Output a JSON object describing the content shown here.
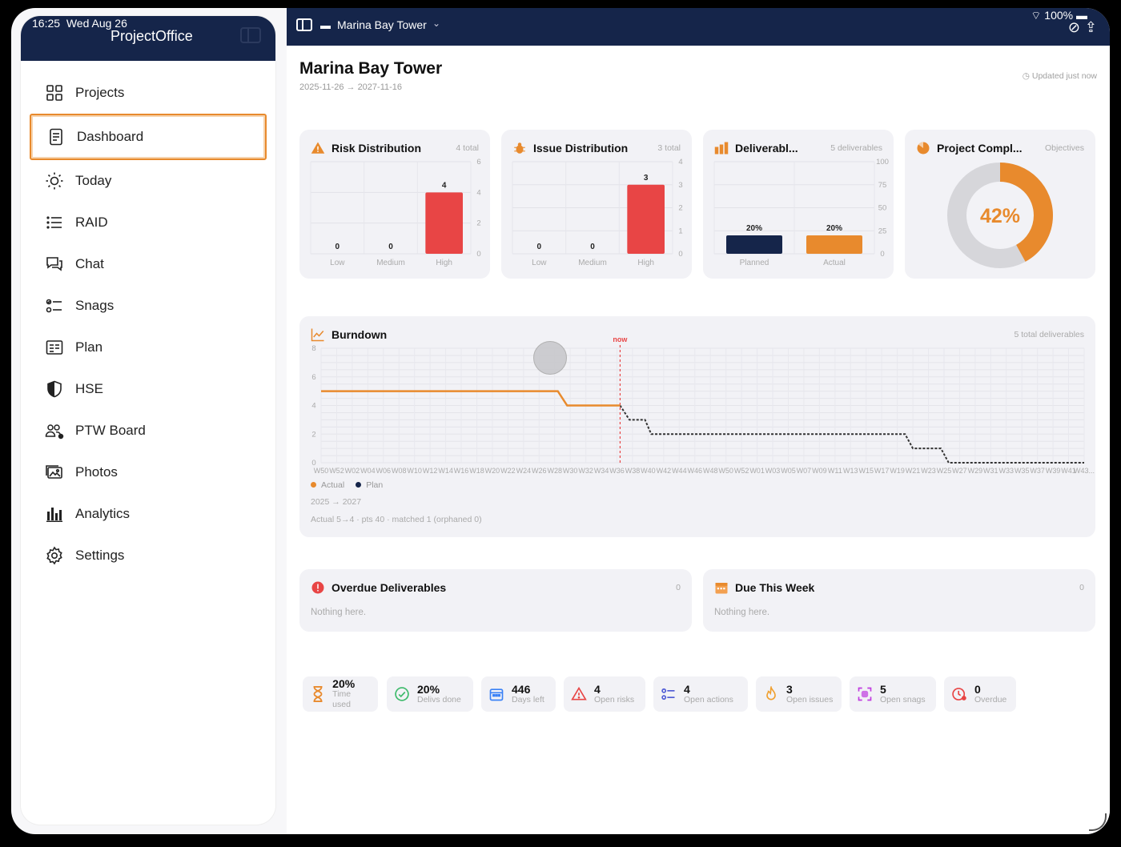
{
  "status": {
    "time": "16:25",
    "date": "Wed Aug 26",
    "battery": "100%"
  },
  "app": {
    "title": "ProjectOffice"
  },
  "sidebar": {
    "items": [
      {
        "label": "Projects",
        "icon": "grid-icon"
      },
      {
        "label": "Dashboard",
        "icon": "document-icon",
        "active": true
      },
      {
        "label": "Today",
        "icon": "sun-icon"
      },
      {
        "label": "RAID",
        "icon": "list-icon"
      },
      {
        "label": "Chat",
        "icon": "chat-icon"
      },
      {
        "label": "Snags",
        "icon": "checklist-icon"
      },
      {
        "label": "Plan",
        "icon": "plan-icon"
      },
      {
        "label": "HSE",
        "icon": "shield-icon"
      },
      {
        "label": "PTW Board",
        "icon": "people-icon"
      },
      {
        "label": "Photos",
        "icon": "photos-icon"
      },
      {
        "label": "Analytics",
        "icon": "bar-chart-icon"
      },
      {
        "label": "Settings",
        "icon": "gear-icon"
      }
    ]
  },
  "topbar": {
    "project": "Marina Bay Tower"
  },
  "header": {
    "title": "Marina Bay Tower",
    "dates": "2025-11-26 → 2027-11-16",
    "updated": "Updated just now"
  },
  "colors": {
    "navy": "#15254a",
    "orange": "#e88a2d",
    "red": "#e84545",
    "grey": "#d6d6da"
  },
  "cards": {
    "risk": {
      "title": "Risk Distribution",
      "meta": "4 total"
    },
    "issue": {
      "title": "Issue Distribution",
      "meta": "3 total"
    },
    "deliverables": {
      "title": "Deliverabl...",
      "meta": "5 deliverables"
    },
    "completion": {
      "title": "Project Compl...",
      "meta": "Objectives"
    },
    "burndown": {
      "title": "Burndown",
      "meta": "5 total deliverables",
      "range": "2025 → 2027",
      "stats": "Actual 5→4 · pts 40 · matched 1 (orphaned 0)"
    },
    "overdue": {
      "title": "Overdue Deliverables",
      "count": "0",
      "empty": "Nothing here."
    },
    "due": {
      "title": "Due This Week",
      "count": "0",
      "empty": "Nothing here."
    }
  },
  "chart_data": [
    {
      "type": "bar",
      "title": "Risk Distribution",
      "categories": [
        "Low",
        "Medium",
        "High"
      ],
      "values": [
        0,
        0,
        4
      ],
      "data_labels": [
        "0",
        "0",
        "4"
      ],
      "yticks": [
        "6",
        "4",
        "2",
        "0"
      ],
      "ylim": [
        0,
        6
      ]
    },
    {
      "type": "bar",
      "title": "Issue Distribution",
      "categories": [
        "Low",
        "Medium",
        "High"
      ],
      "values": [
        0,
        0,
        3
      ],
      "data_labels": [
        "0",
        "0",
        "3"
      ],
      "yticks": [
        "4",
        "3",
        "2",
        "1",
        "0"
      ],
      "ylim": [
        0,
        4
      ]
    },
    {
      "type": "bar",
      "title": "Deliverabl...",
      "categories": [
        "Planned",
        "Actual"
      ],
      "values": [
        20,
        20
      ],
      "data_labels": [
        "20%",
        "20%"
      ],
      "yticks": [
        "100",
        "75",
        "50",
        "25",
        "0"
      ],
      "ylim": [
        0,
        100
      ]
    },
    {
      "type": "pie",
      "title": "Project Compl...",
      "values": [
        42,
        58
      ],
      "center_label": "42%"
    },
    {
      "type": "line",
      "title": "Burndown",
      "yticks": [
        "8",
        "6",
        "4",
        "2",
        "0"
      ],
      "ylim": [
        0,
        8
      ],
      "xticks": [
        "W50",
        "W52",
        "W02",
        "W04",
        "W06",
        "W08",
        "W10",
        "W12",
        "W14",
        "W16",
        "W18",
        "W20",
        "W22",
        "W24",
        "W26",
        "W28",
        "W30",
        "W32",
        "W34",
        "W36",
        "W38",
        "W40",
        "W42",
        "W44",
        "W46",
        "W48",
        "W50",
        "W52",
        "W01",
        "W03",
        "W05",
        "W07",
        "W09",
        "W11",
        "W13",
        "W15",
        "W17",
        "W19",
        "W21",
        "W23",
        "W25",
        "W27",
        "W29",
        "W31",
        "W33",
        "W35",
        "W37",
        "W39",
        "W41",
        "W43..."
      ],
      "now_label": "now",
      "now_index": 19.2,
      "series": [
        {
          "name": "Actual",
          "points": [
            [
              0,
              5
            ],
            [
              15.2,
              5
            ],
            [
              15.8,
              4
            ],
            [
              19.2,
              4
            ]
          ]
        },
        {
          "name": "Plan",
          "points": [
            [
              19.2,
              4
            ],
            [
              19.8,
              3
            ],
            [
              20.8,
              3
            ],
            [
              21.2,
              2
            ],
            [
              37.5,
              2
            ],
            [
              38,
              1
            ],
            [
              39.8,
              1
            ],
            [
              40.3,
              0
            ],
            [
              49,
              0
            ]
          ]
        }
      ]
    }
  ],
  "stats": [
    {
      "value": "20%",
      "label": "Time used",
      "icon": "hourglass-icon"
    },
    {
      "value": "20%",
      "label": "Delivs done",
      "icon": "check-circle-icon"
    },
    {
      "value": "446",
      "label": "Days left",
      "icon": "calendar-icon"
    },
    {
      "value": "4",
      "label": "Open risks",
      "icon": "warning-icon"
    },
    {
      "value": "4",
      "label": "Open actions",
      "icon": "checklist-icon"
    },
    {
      "value": "3",
      "label": "Open issues",
      "icon": "flame-icon"
    },
    {
      "value": "5",
      "label": "Open snags",
      "icon": "snag-icon"
    },
    {
      "value": "0",
      "label": "Overdue",
      "icon": "clock-alert-icon"
    }
  ]
}
